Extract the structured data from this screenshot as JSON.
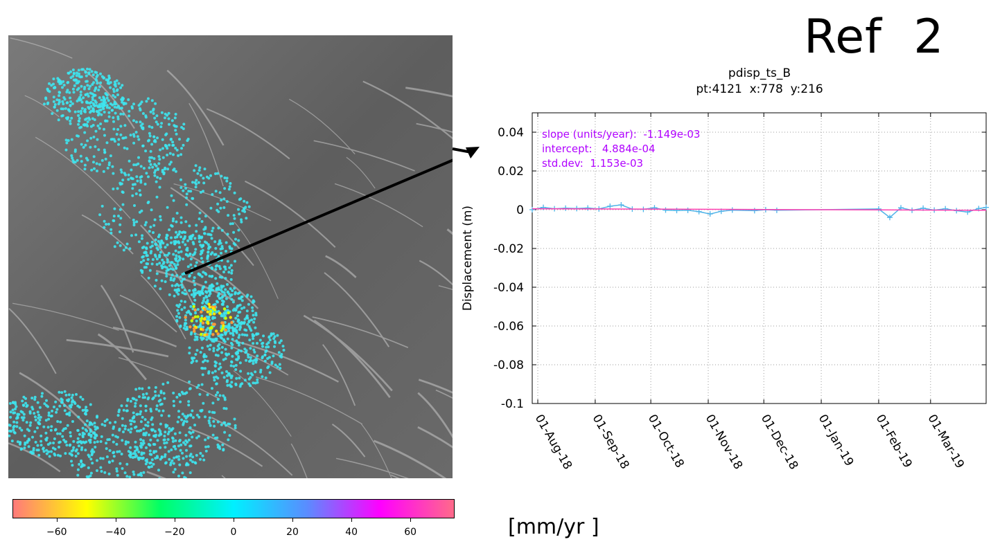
{
  "corner_title": "Ref  2",
  "unit_label": "[mm/yr ]",
  "colorbar": {
    "ticks": [
      "−60",
      "−40",
      "−20",
      "0",
      "20",
      "40",
      "60"
    ],
    "tick_values": [
      -60,
      -40,
      -20,
      0,
      20,
      40,
      60
    ],
    "range": [
      -75,
      75
    ],
    "colors": [
      "#ff7a7a",
      "#ffff00",
      "#00ff66",
      "#00f0ff",
      "#5a8cff",
      "#ff00ff",
      "#ff6a8a"
    ]
  },
  "chart_data": {
    "type": "line",
    "title": "pdisp_ts_B",
    "subtitle": "pt:4121  x:778  y:216",
    "xlabel": "",
    "ylabel": "Displacement (m)",
    "ylim": [
      -0.1,
      0.05
    ],
    "yticks": [
      0.04,
      0.02,
      0,
      -0.02,
      -0.04,
      -0.06,
      -0.08,
      -0.1
    ],
    "ytick_labels": [
      "0.04",
      "0.02",
      "0",
      "-0.02",
      "-0.04",
      "-0.06",
      "-0.08",
      "-0.1"
    ],
    "xlim": [
      "2018-07-29",
      "2019-03-31"
    ],
    "xticks": [
      "2018-08-01",
      "2018-09-01",
      "2018-10-01",
      "2018-11-01",
      "2018-12-01",
      "2019-01-01",
      "2019-02-01",
      "2019-03-01"
    ],
    "xtick_labels": [
      "01-Aug-18",
      "01-Sep-18",
      "01-Oct-18",
      "01-Nov-18",
      "01-Dec-18",
      "01-Jan-19",
      "01-Feb-19",
      "01-Mar-19"
    ],
    "grid": true,
    "annotations": [
      "slope (units/year):  -1.149e-03",
      "intercept:   4.884e-04",
      "std.dev:  1.153e-03"
    ],
    "annotation_color": "#b000ff",
    "series": [
      {
        "color": "#4fb3e8",
        "x": [
          "2018-07-29",
          "2018-08-04",
          "2018-08-10",
          "2018-08-16",
          "2018-08-22",
          "2018-08-28",
          "2018-09-03",
          "2018-09-09",
          "2018-09-15",
          "2018-09-21",
          "2018-09-27",
          "2018-10-03",
          "2018-10-09",
          "2018-10-15",
          "2018-10-21",
          "2018-10-27",
          "2018-11-02",
          "2018-11-08",
          "2018-11-14",
          "2018-11-26",
          "2018-12-02",
          "2018-12-08",
          "2019-02-01",
          "2019-02-07",
          "2019-02-13",
          "2019-02-19",
          "2019-02-25",
          "2019-03-03",
          "2019-03-09",
          "2019-03-15",
          "2019-03-21",
          "2019-03-27",
          "2019-03-31"
        ],
        "y": [
          0.0,
          0.0012,
          0.0005,
          0.0008,
          0.0006,
          0.0009,
          0.0004,
          0.0018,
          0.0025,
          0.0003,
          0.0002,
          0.001,
          -0.0002,
          -0.0004,
          -0.0003,
          -0.001,
          -0.0022,
          -0.0008,
          -0.0002,
          -0.0005,
          0.0,
          -0.0003,
          0.0004,
          -0.004,
          0.001,
          -0.0003,
          0.0008,
          -0.0002,
          0.0005,
          -0.0005,
          -0.0012,
          0.0006,
          0.0012
        ]
      },
      {
        "color": "#ff3fb0",
        "x": [
          "2018-07-29",
          "2019-03-31"
        ],
        "y": [
          0.0005,
          -0.0003
        ]
      }
    ]
  }
}
